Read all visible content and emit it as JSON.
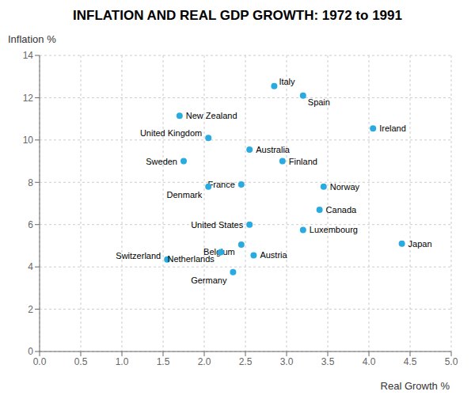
{
  "chart_data": {
    "type": "scatter",
    "title": "INFLATION AND REAL GDP GROWTH: 1972 to 1991",
    "xlabel": "Real Growth %",
    "ylabel": "Inflation %",
    "color": "#29abe2",
    "labels": [
      "Italy",
      "Spain",
      "New Zealand",
      "Ireland",
      "United Kingdom",
      "Australia",
      "Sweden",
      "Finland",
      "France",
      "Denmark",
      "Norway",
      "Canada",
      "United States",
      "Luxembourg",
      "Belgium",
      "Japan",
      "Switzerland",
      "Netherlands",
      "Austria",
      "Germany"
    ],
    "x": [
      2.85,
      3.2,
      1.7,
      4.05,
      2.05,
      2.55,
      1.75,
      2.95,
      2.45,
      2.05,
      3.45,
      3.4,
      2.55,
      3.2,
      2.45,
      4.4,
      1.55,
      2.2,
      2.6,
      2.35
    ],
    "values": [
      12.55,
      12.1,
      11.15,
      10.55,
      10.1,
      9.55,
      9.0,
      9.0,
      7.9,
      7.8,
      7.8,
      6.7,
      6.0,
      5.75,
      5.05,
      5.1,
      4.35,
      4.7,
      4.55,
      3.75
    ],
    "xlim": [
      0.0,
      5.0
    ],
    "ylim": [
      0.0,
      14.0
    ],
    "xticks": [
      {
        "value": 0.0,
        "label": "0.0"
      },
      {
        "value": 0.5,
        "label": "0.5"
      },
      {
        "value": 1.0,
        "label": "1.0"
      },
      {
        "value": 1.5,
        "label": "1.5"
      },
      {
        "value": 2.0,
        "label": "2.0"
      },
      {
        "value": 2.5,
        "label": "2.5"
      },
      {
        "value": 3.0,
        "label": "3.0"
      },
      {
        "value": 3.5,
        "label": "3.5"
      },
      {
        "value": 4.0,
        "label": "4.0"
      },
      {
        "value": 4.5,
        "label": "4.5"
      },
      {
        "value": 5.0,
        "label": "5.0"
      }
    ],
    "yticks": [
      0,
      2,
      4,
      6,
      8,
      10,
      12,
      14
    ],
    "grid": true
  }
}
